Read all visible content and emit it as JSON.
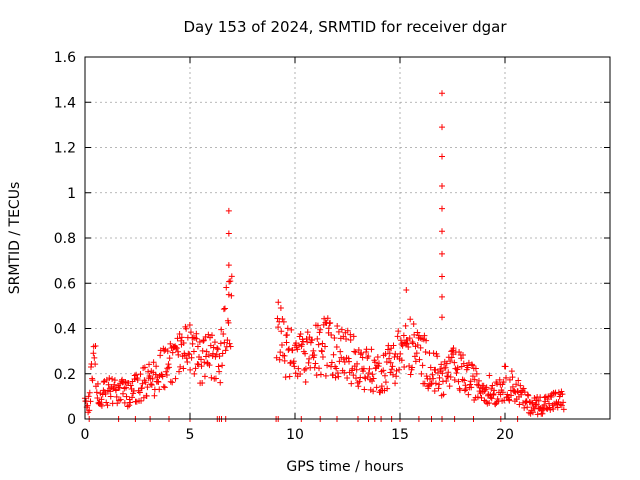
{
  "chart_data": {
    "type": "scatter",
    "title": "Day 153 of 2024, SRMTID for receiver dgar",
    "xlabel": "GPS time / hours",
    "ylabel": "SRMTID / TECUs",
    "xlim": [
      0,
      25
    ],
    "ylim": [
      0,
      1.6
    ],
    "grid": true,
    "legend": "none",
    "marker": "+",
    "color": "#ff0000",
    "x_ticks": [
      {
        "v": 0,
        "label": "0"
      },
      {
        "v": 5,
        "label": "5"
      },
      {
        "v": 10,
        "label": "10"
      },
      {
        "v": 15,
        "label": "15"
      },
      {
        "v": 20,
        "label": "20"
      }
    ],
    "y_ticks": [
      {
        "v": 0,
        "label": "0"
      },
      {
        "v": 0.2,
        "label": "0.2"
      },
      {
        "v": 0.4,
        "label": "0.4"
      },
      {
        "v": 0.6,
        "label": "0.6"
      },
      {
        "v": 0.8,
        "label": "0.8"
      },
      {
        "v": 1.0,
        "label": "1"
      },
      {
        "v": 1.2,
        "label": "1.2"
      },
      {
        "v": 1.4,
        "label": "1.4"
      },
      {
        "v": 1.6,
        "label": "1.6"
      }
    ],
    "envelope": [
      [
        0.0,
        0.08
      ],
      [
        0.2,
        0.06
      ],
      [
        0.3,
        0.22
      ],
      [
        0.5,
        0.24
      ],
      [
        0.6,
        0.1
      ],
      [
        1.0,
        0.12
      ],
      [
        1.5,
        0.13
      ],
      [
        2.0,
        0.11
      ],
      [
        2.5,
        0.14
      ],
      [
        3.0,
        0.17
      ],
      [
        3.5,
        0.2
      ],
      [
        4.0,
        0.25
      ],
      [
        4.5,
        0.28
      ],
      [
        5.0,
        0.3
      ],
      [
        5.5,
        0.27
      ],
      [
        6.0,
        0.3
      ],
      [
        6.4,
        0.22
      ],
      [
        6.7,
        0.45
      ],
      [
        6.9,
        0.48
      ],
      [
        9.2,
        0.4
      ],
      [
        9.6,
        0.3
      ],
      [
        10.0,
        0.26
      ],
      [
        10.5,
        0.28
      ],
      [
        11.0,
        0.3
      ],
      [
        11.5,
        0.32
      ],
      [
        12.0,
        0.3
      ],
      [
        12.5,
        0.28
      ],
      [
        13.0,
        0.24
      ],
      [
        13.5,
        0.22
      ],
      [
        14.0,
        0.2
      ],
      [
        14.5,
        0.24
      ],
      [
        15.0,
        0.3
      ],
      [
        15.5,
        0.32
      ],
      [
        16.0,
        0.28
      ],
      [
        16.5,
        0.22
      ],
      [
        17.0,
        0.18
      ],
      [
        17.5,
        0.22
      ],
      [
        18.0,
        0.2
      ],
      [
        18.5,
        0.16
      ],
      [
        19.0,
        0.14
      ],
      [
        19.5,
        0.12
      ],
      [
        20.0,
        0.16
      ],
      [
        20.5,
        0.14
      ],
      [
        21.0,
        0.07
      ],
      [
        21.5,
        0.06
      ],
      [
        22.0,
        0.07
      ],
      [
        22.5,
        0.08
      ],
      [
        22.8,
        0.08
      ]
    ],
    "gaps": [
      [
        7.0,
        9.1
      ]
    ],
    "peaks": [
      {
        "x": 6.85,
        "values": [
          0.55,
          0.68,
          0.82,
          0.92
        ]
      },
      {
        "x": 17.0,
        "values": [
          0.45,
          0.54,
          0.63,
          0.73,
          0.83,
          0.93,
          1.03,
          1.16,
          1.29,
          1.44
        ]
      },
      {
        "x": 15.3,
        "values": [
          0.57
        ]
      }
    ],
    "baseline_markers": [
      0.2,
      1.6,
      2.4,
      3.1,
      4.0,
      5.0,
      6.3,
      6.4,
      6.5,
      6.7,
      9.1,
      9.2,
      10.3,
      11.2,
      12.0,
      13.0,
      13.5,
      13.8,
      14.1,
      14.6,
      15.0,
      15.9,
      16.5,
      17.0,
      17.6,
      18.5,
      19.8,
      20.6
    ]
  }
}
